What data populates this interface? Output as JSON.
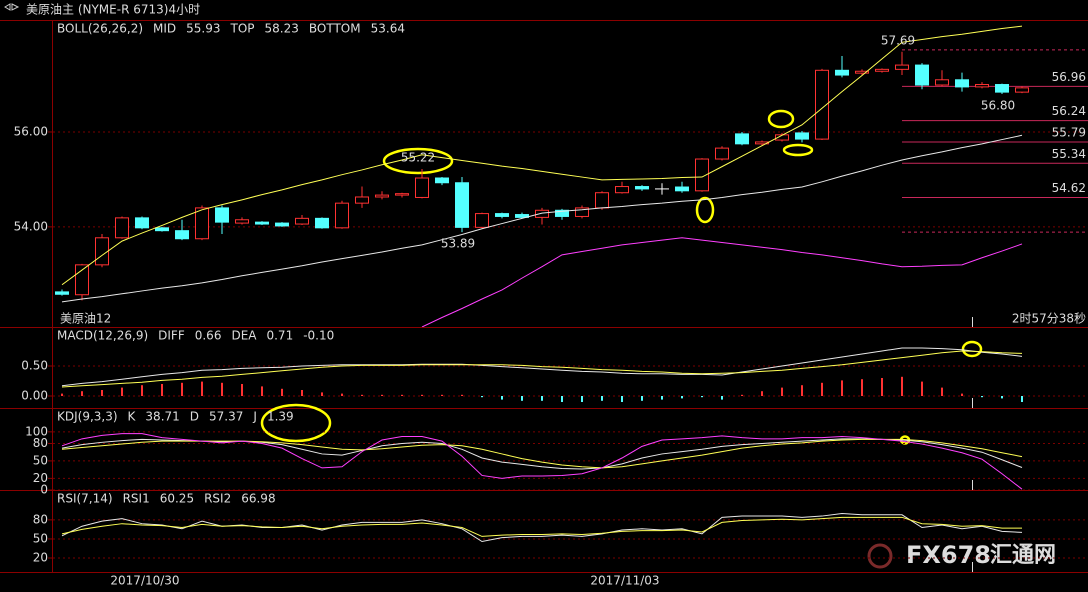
{
  "title": "美原油主 (NYME-R 6713)4小时",
  "watermark": {
    "brand": "FX678",
    "site": "汇通网"
  },
  "chart_data": [
    {
      "type": "candlestick",
      "indicator": "BOLL(26,26,2)",
      "up_color": "#ff3232",
      "down_color": "#54ffff",
      "flat_color": "#ffffff",
      "ylim": [
        51.89,
        58.36
      ],
      "yticks": [
        {
          "value": 54,
          "label": "54.00"
        },
        {
          "value": 56,
          "label": "56.00"
        }
      ],
      "grid": true,
      "open": [
        52.63,
        52.57,
        53.2,
        53.77,
        54.19,
        53.98,
        53.92,
        53.75,
        54.4,
        54.08,
        54.1,
        54.08,
        54.06,
        54.18,
        53.98,
        54.5,
        54.63,
        54.67,
        54.62,
        55.03,
        54.93,
        53.99,
        54.28,
        54.26,
        54.2,
        54.35,
        54.22,
        54.4,
        54.72,
        54.85,
        54.8,
        54.84,
        54.76,
        55.43,
        55.96,
        55.75,
        55.83,
        55.98,
        55.85,
        57.3,
        57.24,
        57.28,
        57.32,
        57.41,
        56.99,
        57.1,
        56.95,
        57.0,
        56.84
      ],
      "high": [
        52.68,
        53.22,
        53.85,
        54.22,
        54.22,
        54.0,
        54.15,
        54.45,
        54.45,
        54.2,
        54.12,
        54.1,
        54.25,
        54.2,
        54.55,
        54.85,
        54.75,
        54.72,
        55.22,
        55.05,
        55.05,
        54.3,
        54.3,
        54.3,
        54.4,
        54.38,
        54.45,
        54.75,
        54.95,
        54.88,
        54.92,
        54.95,
        55.45,
        55.7,
        56.0,
        55.82,
        55.98,
        56.02,
        57.33,
        57.6,
        57.32,
        57.34,
        57.69,
        57.45,
        57.3,
        57.25,
        57.05,
        57.02,
        56.96
      ],
      "low": [
        52.55,
        52.45,
        53.15,
        53.75,
        53.95,
        53.9,
        53.72,
        53.72,
        53.85,
        54.05,
        54.04,
        54.0,
        54.04,
        53.96,
        53.96,
        54.4,
        54.58,
        54.62,
        54.6,
        54.88,
        53.89,
        53.97,
        54.18,
        54.18,
        54.05,
        54.15,
        54.18,
        54.36,
        54.7,
        54.76,
        54.68,
        54.72,
        54.74,
        55.4,
        55.72,
        55.72,
        55.8,
        55.78,
        55.83,
        57.15,
        57.2,
        57.25,
        57.2,
        56.9,
        56.96,
        56.85,
        56.92,
        56.8,
        56.82
      ],
      "close": [
        52.58,
        53.2,
        53.77,
        54.19,
        53.98,
        53.92,
        53.75,
        54.4,
        54.1,
        54.15,
        54.06,
        54.02,
        54.18,
        53.98,
        54.5,
        54.63,
        54.67,
        54.7,
        55.03,
        54.93,
        53.99,
        54.28,
        54.22,
        54.2,
        54.35,
        54.22,
        54.4,
        54.72,
        54.85,
        54.8,
        54.8,
        54.76,
        55.43,
        55.66,
        55.75,
        55.79,
        55.94,
        55.85,
        57.3,
        57.2,
        57.28,
        57.32,
        57.41,
        56.99,
        57.1,
        56.95,
        57.0,
        56.84,
        56.93
      ],
      "series": [
        {
          "name": "MID",
          "color": "#e8e8e8",
          "current": 55.93,
          "values": [
            52.42,
            52.48,
            52.53,
            52.59,
            52.65,
            52.71,
            52.76,
            52.82,
            52.89,
            52.97,
            53.04,
            53.11,
            53.18,
            53.26,
            53.33,
            53.4,
            53.47,
            53.55,
            53.62,
            53.73,
            53.84,
            53.96,
            54.07,
            54.18,
            54.29,
            54.33,
            54.36,
            54.4,
            54.43,
            54.47,
            54.5,
            54.54,
            54.57,
            54.62,
            54.68,
            54.73,
            54.79,
            54.84,
            54.95,
            55.07,
            55.18,
            55.3,
            55.41,
            55.5,
            55.58,
            55.67,
            55.75,
            55.84,
            55.93
          ]
        },
        {
          "name": "TOP",
          "color": "#ffff55",
          "current": 58.23,
          "values": [
            52.78,
            53.09,
            53.4,
            53.7,
            53.87,
            54.03,
            54.2,
            54.36,
            54.47,
            54.57,
            54.68,
            54.78,
            54.89,
            54.99,
            55.1,
            55.2,
            55.31,
            55.41,
            55.52,
            55.46,
            55.4,
            55.34,
            55.28,
            55.23,
            55.17,
            55.11,
            55.05,
            54.99,
            55.0,
            55.01,
            55.02,
            55.04,
            55.05,
            55.27,
            55.49,
            55.71,
            55.93,
            56.15,
            56.5,
            56.85,
            57.19,
            57.54,
            57.89,
            57.95,
            58.01,
            58.06,
            58.12,
            58.18,
            58.23
          ]
        },
        {
          "name": "BOTTOM",
          "color": "#ff40ff",
          "current": 53.64,
          "values": [
            null,
            null,
            null,
            null,
            null,
            null,
            null,
            null,
            null,
            null,
            null,
            null,
            null,
            null,
            null,
            null,
            null,
            null,
            51.89,
            52.09,
            52.28,
            52.48,
            52.67,
            52.92,
            53.16,
            53.41,
            53.48,
            53.55,
            53.62,
            53.67,
            53.72,
            53.77,
            53.72,
            53.67,
            53.62,
            53.57,
            53.52,
            53.46,
            53.41,
            53.35,
            53.29,
            53.22,
            53.16,
            53.17,
            53.19,
            53.2,
            53.35,
            53.49,
            53.64
          ]
        }
      ],
      "annotations": [
        {
          "index": 18,
          "value": 55.22,
          "label": "55.22"
        },
        {
          "index": 20,
          "value": 53.89,
          "label": "53.89"
        },
        {
          "index": 42,
          "value": 57.69,
          "label": "57.69"
        },
        {
          "index": 47,
          "value": 56.8,
          "label": "56.80"
        }
      ],
      "levels": [
        {
          "value": 56.96,
          "label": "56.96"
        },
        {
          "value": 56.24,
          "label": "56.24"
        },
        {
          "value": 55.79,
          "label": "55.79"
        },
        {
          "value": 55.34,
          "label": "55.34"
        },
        {
          "value": 54.62,
          "label": "54.62"
        }
      ],
      "dashed_levels": [
        57.73,
        53.89
      ],
      "footnote": "美原油12",
      "countdown": "2时57分38秒"
    },
    {
      "type": "line",
      "indicator": "MACD(12,26,9)",
      "ylim": [
        -0.2,
        1.15
      ],
      "yticks": [
        {
          "value": 0,
          "label": "0.00"
        },
        {
          "value": 0.5,
          "label": "0.50"
        }
      ],
      "grid": true,
      "series": [
        {
          "name": "DIFF",
          "color": "#e8e8e8",
          "current": 0.66,
          "values": [
            0.17,
            0.21,
            0.24,
            0.28,
            0.32,
            0.36,
            0.39,
            0.43,
            0.44,
            0.46,
            0.47,
            0.48,
            0.5,
            0.51,
            0.52,
            0.52,
            0.52,
            0.52,
            0.53,
            0.53,
            0.53,
            0.51,
            0.49,
            0.47,
            0.45,
            0.43,
            0.41,
            0.4,
            0.38,
            0.37,
            0.37,
            0.36,
            0.36,
            0.35,
            0.4,
            0.45,
            0.5,
            0.55,
            0.6,
            0.65,
            0.7,
            0.75,
            0.8,
            0.8,
            0.79,
            0.77,
            0.73,
            0.7,
            0.66
          ]
        },
        {
          "name": "DEA",
          "color": "#ffff55",
          "current": 0.71,
          "values": [
            0.15,
            0.17,
            0.19,
            0.21,
            0.23,
            0.26,
            0.28,
            0.31,
            0.33,
            0.36,
            0.39,
            0.42,
            0.45,
            0.48,
            0.5,
            0.51,
            0.51,
            0.51,
            0.52,
            0.52,
            0.52,
            0.52,
            0.52,
            0.51,
            0.49,
            0.48,
            0.46,
            0.44,
            0.43,
            0.41,
            0.4,
            0.38,
            0.37,
            0.38,
            0.39,
            0.41,
            0.43,
            0.46,
            0.49,
            0.52,
            0.56,
            0.6,
            0.64,
            0.68,
            0.72,
            0.75,
            0.74,
            0.72,
            0.71
          ]
        },
        {
          "type": "bar",
          "up_color": "#ff3232",
          "down_color": "#54ffff",
          "current": {
            "value": -0.1,
            "label": "-0.10"
          },
          "values": [
            0.04,
            0.08,
            0.1,
            0.14,
            0.18,
            0.2,
            0.22,
            0.24,
            0.22,
            0.2,
            0.16,
            0.12,
            0.1,
            0.06,
            0.04,
            0.02,
            0.02,
            0.02,
            0.02,
            0.02,
            0.02,
            -0.02,
            -0.06,
            -0.08,
            -0.08,
            -0.1,
            -0.1,
            -0.08,
            -0.1,
            -0.08,
            -0.06,
            -0.04,
            -0.02,
            -0.06,
            0.02,
            0.08,
            0.14,
            0.18,
            0.22,
            0.26,
            0.28,
            0.3,
            0.32,
            0.24,
            0.14,
            0.04,
            -0.02,
            -0.04,
            -0.1
          ]
        }
      ]
    },
    {
      "type": "line",
      "indicator": "KDJ(9,3,3)",
      "ylim": [
        0,
        141
      ],
      "yticks": [
        0,
        20,
        50,
        80,
        100
      ],
      "grid": true,
      "series": [
        {
          "name": "K",
          "color": "#e8e8e8",
          "current": 38.71,
          "values": [
            72,
            78,
            82,
            85,
            87,
            86,
            85,
            84,
            83,
            84,
            82,
            78,
            70,
            62,
            60,
            68,
            76,
            80,
            82,
            80,
            70,
            55,
            48,
            44,
            40,
            37,
            36,
            38,
            45,
            55,
            62,
            66,
            70,
            75,
            78,
            80,
            82,
            84,
            86,
            88,
            88,
            87,
            86,
            83,
            78,
            72,
            65,
            52,
            38.71
          ]
        },
        {
          "name": "D",
          "color": "#ffff55",
          "current": 57.37,
          "values": [
            70,
            73,
            76,
            79,
            82,
            84,
            84,
            84,
            84,
            84,
            83,
            81,
            78,
            74,
            70,
            69,
            71,
            74,
            77,
            78,
            76,
            70,
            62,
            54,
            48,
            43,
            40,
            38,
            40,
            45,
            50,
            55,
            60,
            66,
            72,
            76,
            79,
            81,
            84,
            86,
            87,
            87,
            87,
            85,
            81,
            76,
            71,
            64,
            57.37
          ]
        },
        {
          "name": "J",
          "color": "#ff40ff",
          "current": 1.39,
          "values": [
            76,
            88,
            94,
            97,
            97,
            90,
            87,
            84,
            81,
            84,
            80,
            72,
            54,
            38,
            40,
            66,
            86,
            92,
            92,
            84,
            58,
            25,
            20,
            24,
            24,
            25,
            28,
            38,
            55,
            75,
            86,
            88,
            90,
            93,
            90,
            88,
            88,
            90,
            90,
            92,
            90,
            87,
            84,
            79,
            72,
            64,
            53,
            28,
            1.39
          ]
        }
      ]
    },
    {
      "type": "line",
      "indicator": "RSI(7,14)",
      "ylim": [
        -2,
        127
      ],
      "yticks": [
        20,
        50,
        80
      ],
      "grid": true,
      "categories": [
        null,
        null,
        null,
        null,
        "2017/10/30",
        null,
        null,
        null,
        null,
        null,
        null,
        null,
        null,
        null,
        null,
        null,
        null,
        null,
        null,
        null,
        null,
        null,
        null,
        null,
        null,
        null,
        null,
        null,
        "2017/11/03",
        null,
        null,
        null,
        null,
        null,
        null,
        null,
        null,
        null,
        null,
        null,
        null,
        null,
        null,
        null,
        null,
        null,
        null,
        null,
        null
      ],
      "series": [
        {
          "name": "RSI1",
          "color": "#e8e8e8",
          "current": 60.25,
          "values": [
            55,
            70,
            78,
            82,
            74,
            72,
            66,
            78,
            70,
            72,
            68,
            68,
            72,
            64,
            72,
            76,
            76,
            76,
            80,
            74,
            66,
            46,
            52,
            54,
            54,
            56,
            54,
            58,
            64,
            66,
            64,
            66,
            58,
            84,
            86,
            86,
            86,
            84,
            86,
            90,
            88,
            88,
            88,
            68,
            72,
            66,
            70,
            62,
            60.25
          ]
        },
        {
          "name": "RSI2",
          "color": "#ffff55",
          "current": 66.98,
          "values": [
            58,
            65,
            70,
            74,
            72,
            71,
            68,
            73,
            70,
            71,
            69,
            68,
            70,
            66,
            70,
            72,
            73,
            73,
            75,
            72,
            68,
            54,
            56,
            57,
            57,
            58,
            57,
            59,
            62,
            63,
            63,
            64,
            61,
            76,
            79,
            80,
            81,
            80,
            82,
            84,
            84,
            84,
            84,
            74,
            73,
            70,
            71,
            67,
            66.98
          ]
        }
      ]
    }
  ]
}
